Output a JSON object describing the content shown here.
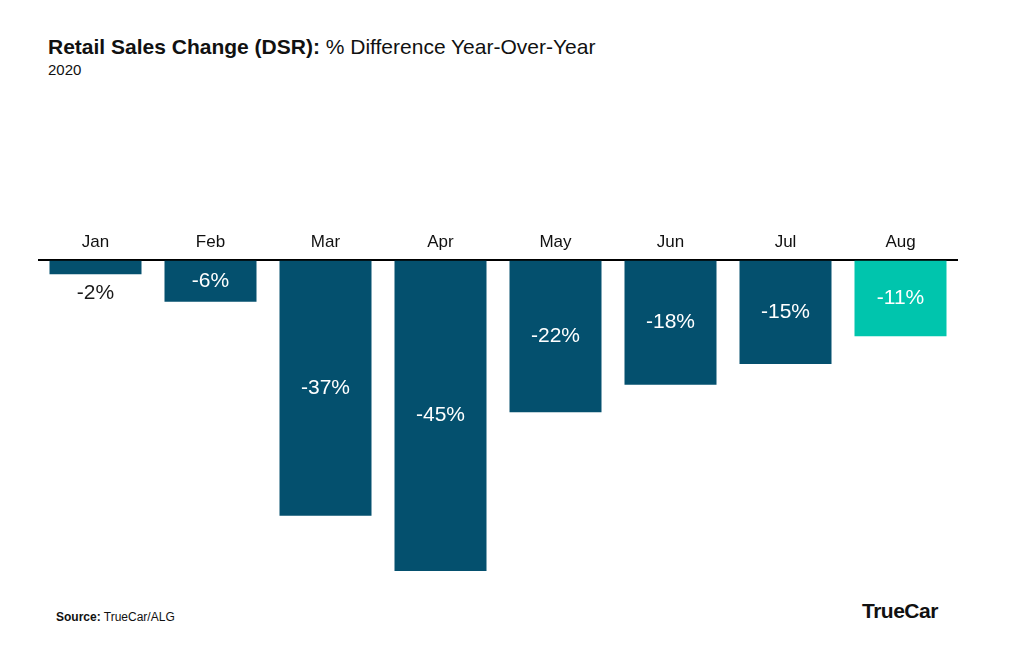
{
  "chart_data": {
    "type": "bar",
    "title": "Retail Sales Change (DSR): % Difference Year-Over-Year",
    "subtitle": "2020",
    "source_label": "Source:",
    "source": "TrueCar/ALG",
    "logo": "TrueCar",
    "categories": [
      "Jan",
      "Feb",
      "Mar",
      "Apr",
      "May",
      "Jun",
      "Jul",
      "Aug"
    ],
    "values": [
      -2,
      -6,
      -37,
      -45,
      -22,
      -18,
      -15,
      -11
    ],
    "value_labels": [
      "-2%",
      "-6%",
      "-37%",
      "-45%",
      "-22%",
      "-18%",
      "-15%",
      "-11%"
    ],
    "colors": [
      "#04506e",
      "#04506e",
      "#04506e",
      "#04506e",
      "#04506e",
      "#04506e",
      "#04506e",
      "#00c5ad"
    ],
    "ylim": [
      -45,
      0
    ],
    "grid": false,
    "data_labels": true,
    "tick_labels": "x"
  }
}
